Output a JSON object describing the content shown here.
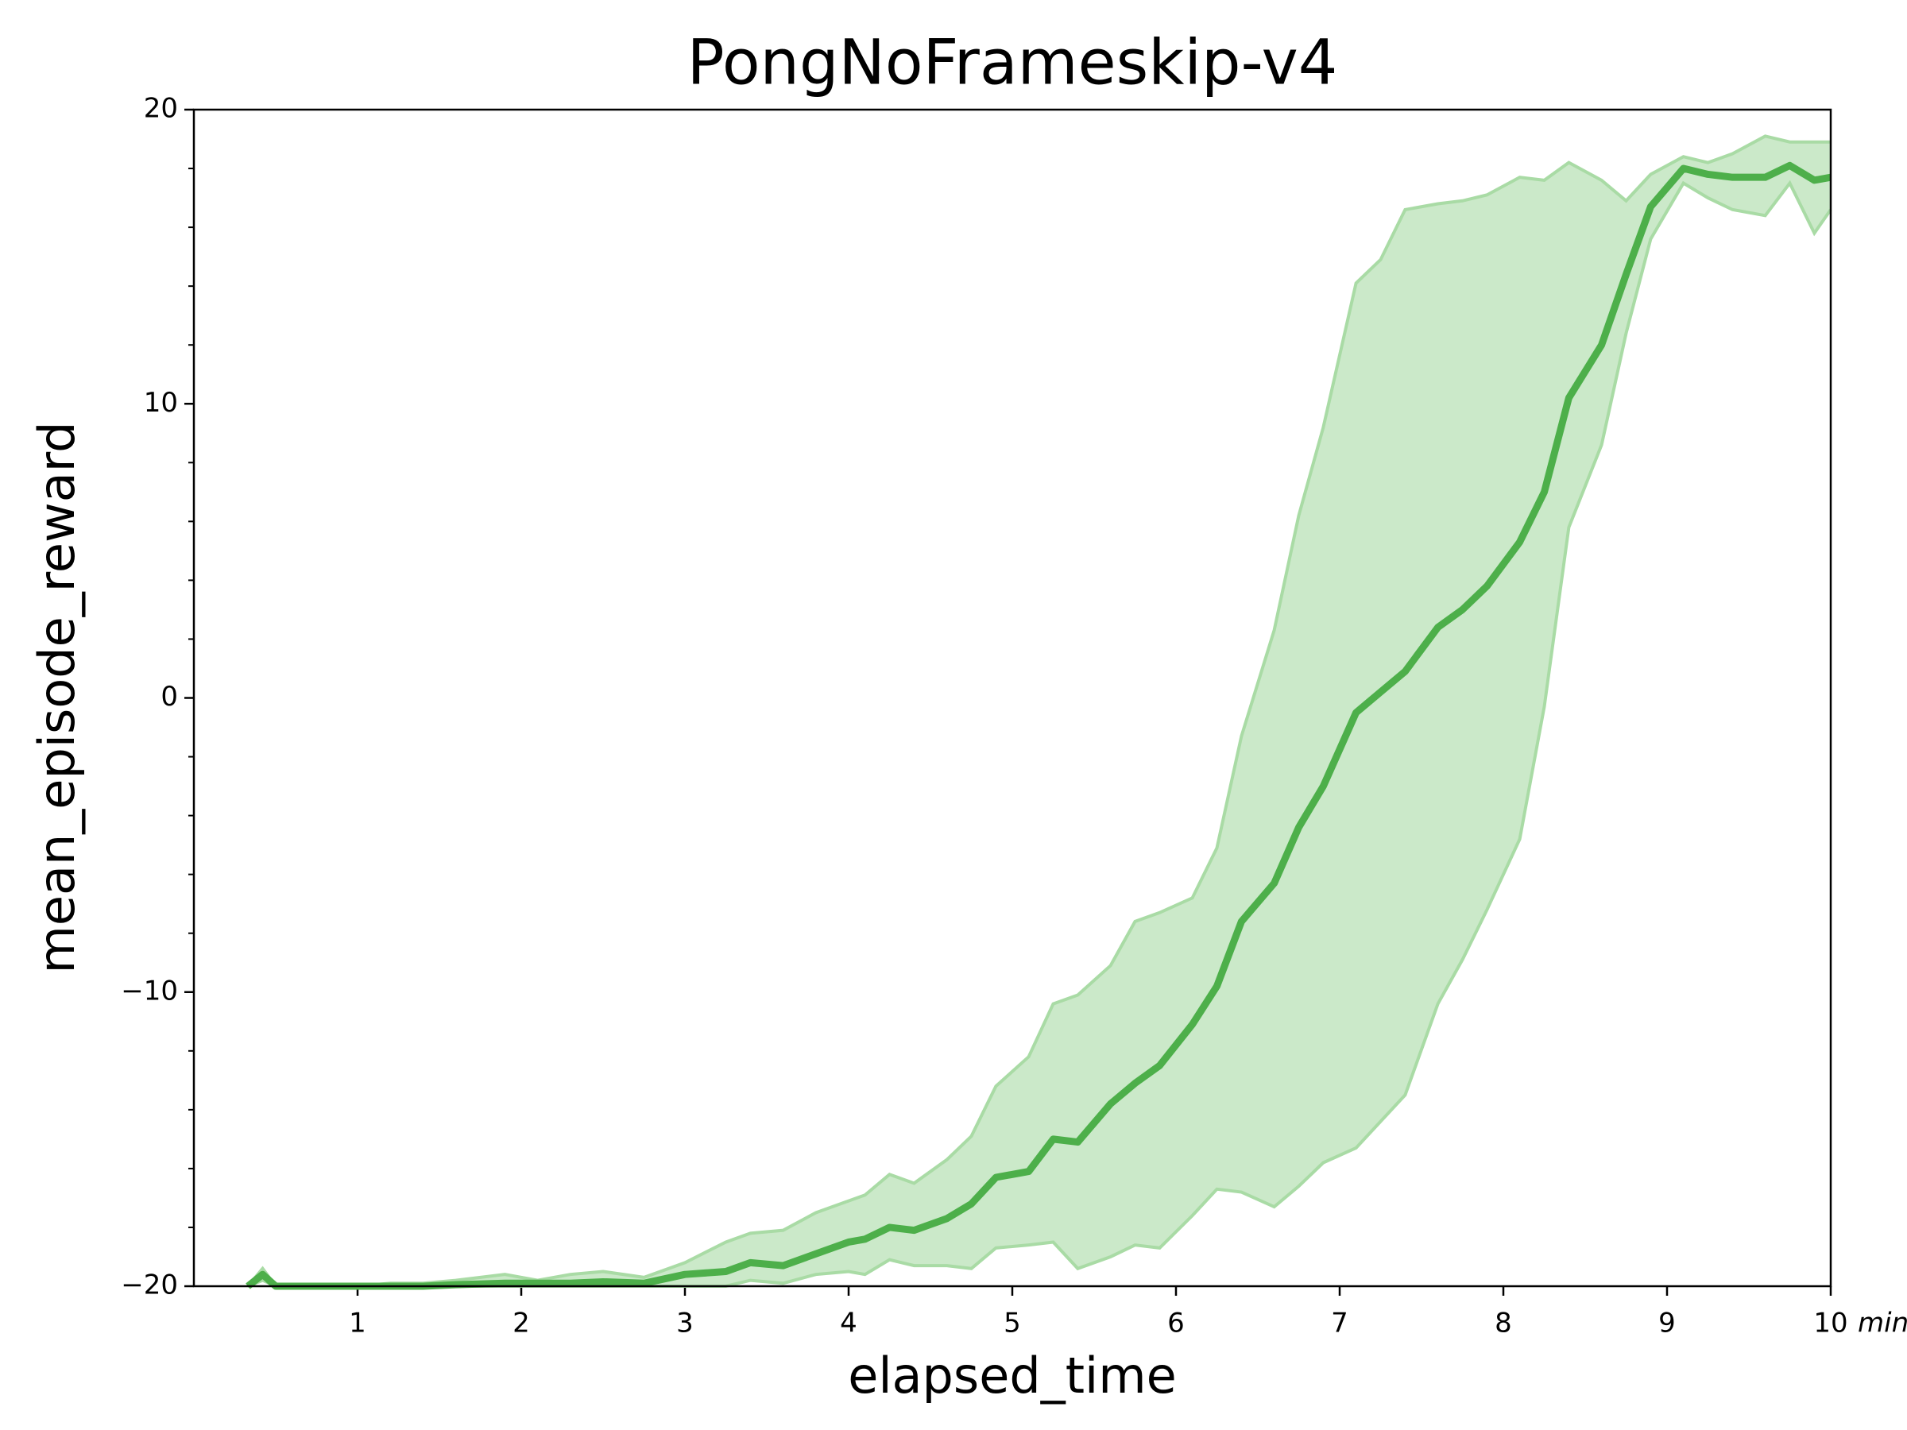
{
  "chart_data": {
    "type": "line_band",
    "title": "PongNoFrameskip-v4",
    "x_label": "elapsed_time",
    "y_label": "mean_episode_reward",
    "x_unit": "min",
    "color": "#4daf4a",
    "band_color": "#a9dba5",
    "x": [
      0.33,
      0.42,
      0.5,
      0.75,
      1.0,
      1.2,
      1.4,
      1.6,
      1.9,
      2.1,
      2.3,
      2.5,
      2.75,
      3.0,
      3.25,
      3.4,
      3.6,
      3.8,
      4.0,
      4.1,
      4.25,
      4.4,
      4.6,
      4.75,
      4.9,
      5.1,
      5.25,
      5.4,
      5.6,
      5.75,
      5.9,
      6.1,
      6.25,
      6.4,
      6.6,
      6.75,
      6.9,
      7.1,
      7.25,
      7.4,
      7.6,
      7.75,
      7.9,
      8.1,
      8.25,
      8.4,
      8.6,
      8.75,
      8.9,
      9.1,
      9.25,
      9.4,
      9.6,
      9.75,
      9.9,
      10
    ],
    "values": [
      -20,
      -19.6,
      -20,
      -20,
      -20,
      -20,
      -20,
      -19.95,
      -19.9,
      -19.9,
      -19.9,
      -19.85,
      -19.9,
      -19.6,
      -19.5,
      -19.2,
      -19.3,
      -18.9,
      -18.5,
      -18.4,
      -18.0,
      -18.1,
      -17.7,
      -17.2,
      -16.3,
      -16.1,
      -15.0,
      -15.1,
      -13.8,
      -13.1,
      -12.5,
      -11.1,
      -9.8,
      -7.6,
      -6.3,
      -4.4,
      -3.0,
      -0.5,
      0.2,
      0.9,
      2.4,
      3.0,
      3.8,
      5.3,
      7.0,
      10.2,
      12.0,
      14.4,
      16.7,
      18.0,
      17.8,
      17.7,
      17.7,
      18.1,
      17.6,
      17.7
    ],
    "upper": [
      -20,
      -19.4,
      -20,
      -20,
      -20,
      -19.9,
      -19.9,
      -19.8,
      -19.6,
      -19.8,
      -19.6,
      -19.5,
      -19.7,
      -19.2,
      -18.5,
      -18.2,
      -18.1,
      -17.5,
      -17.1,
      -16.9,
      -16.2,
      -16.5,
      -15.7,
      -14.9,
      -13.2,
      -12.2,
      -10.4,
      -10.1,
      -9.1,
      -7.6,
      -7.3,
      -6.8,
      -5.1,
      -1.3,
      2.3,
      6.2,
      9.2,
      14.1,
      14.9,
      16.6,
      16.8,
      16.9,
      17.1,
      17.7,
      17.6,
      18.2,
      17.6,
      16.9,
      17.8,
      18.4,
      18.2,
      18.5,
      19.1,
      18.9,
      18.9,
      18.9
    ],
    "lower": [
      -20,
      -19.8,
      -20,
      -20,
      -20,
      -20,
      -20,
      -20,
      -20,
      -20,
      -20,
      -20,
      -20,
      -20,
      -20,
      -19.8,
      -19.9,
      -19.6,
      -19.5,
      -19.6,
      -19.1,
      -19.3,
      -19.3,
      -19.4,
      -18.7,
      -18.6,
      -18.5,
      -19.4,
      -19.0,
      -18.6,
      -18.7,
      -17.6,
      -16.7,
      -16.8,
      -17.3,
      -16.6,
      -15.8,
      -15.3,
      -14.4,
      -13.5,
      -10.4,
      -8.9,
      -7.2,
      -4.8,
      -0.3,
      5.8,
      8.6,
      12.4,
      15.6,
      17.5,
      17.0,
      16.6,
      16.4,
      17.5,
      15.8,
      16.6
    ],
    "xlim": [
      0,
      10
    ],
    "xticks": [
      1,
      2,
      3,
      4,
      5,
      6,
      7,
      8,
      9,
      10
    ],
    "ylim": [
      -20,
      20
    ],
    "yticks": [
      {
        "value": -20,
        "label": "−20"
      },
      {
        "value": -10,
        "label": "−10"
      },
      0,
      10,
      20
    ],
    "yminor_ticks": [
      -18,
      -16,
      -14,
      -12,
      -8,
      -6,
      -4,
      -2,
      2,
      4,
      6,
      8,
      12,
      14,
      16,
      18
    ]
  }
}
